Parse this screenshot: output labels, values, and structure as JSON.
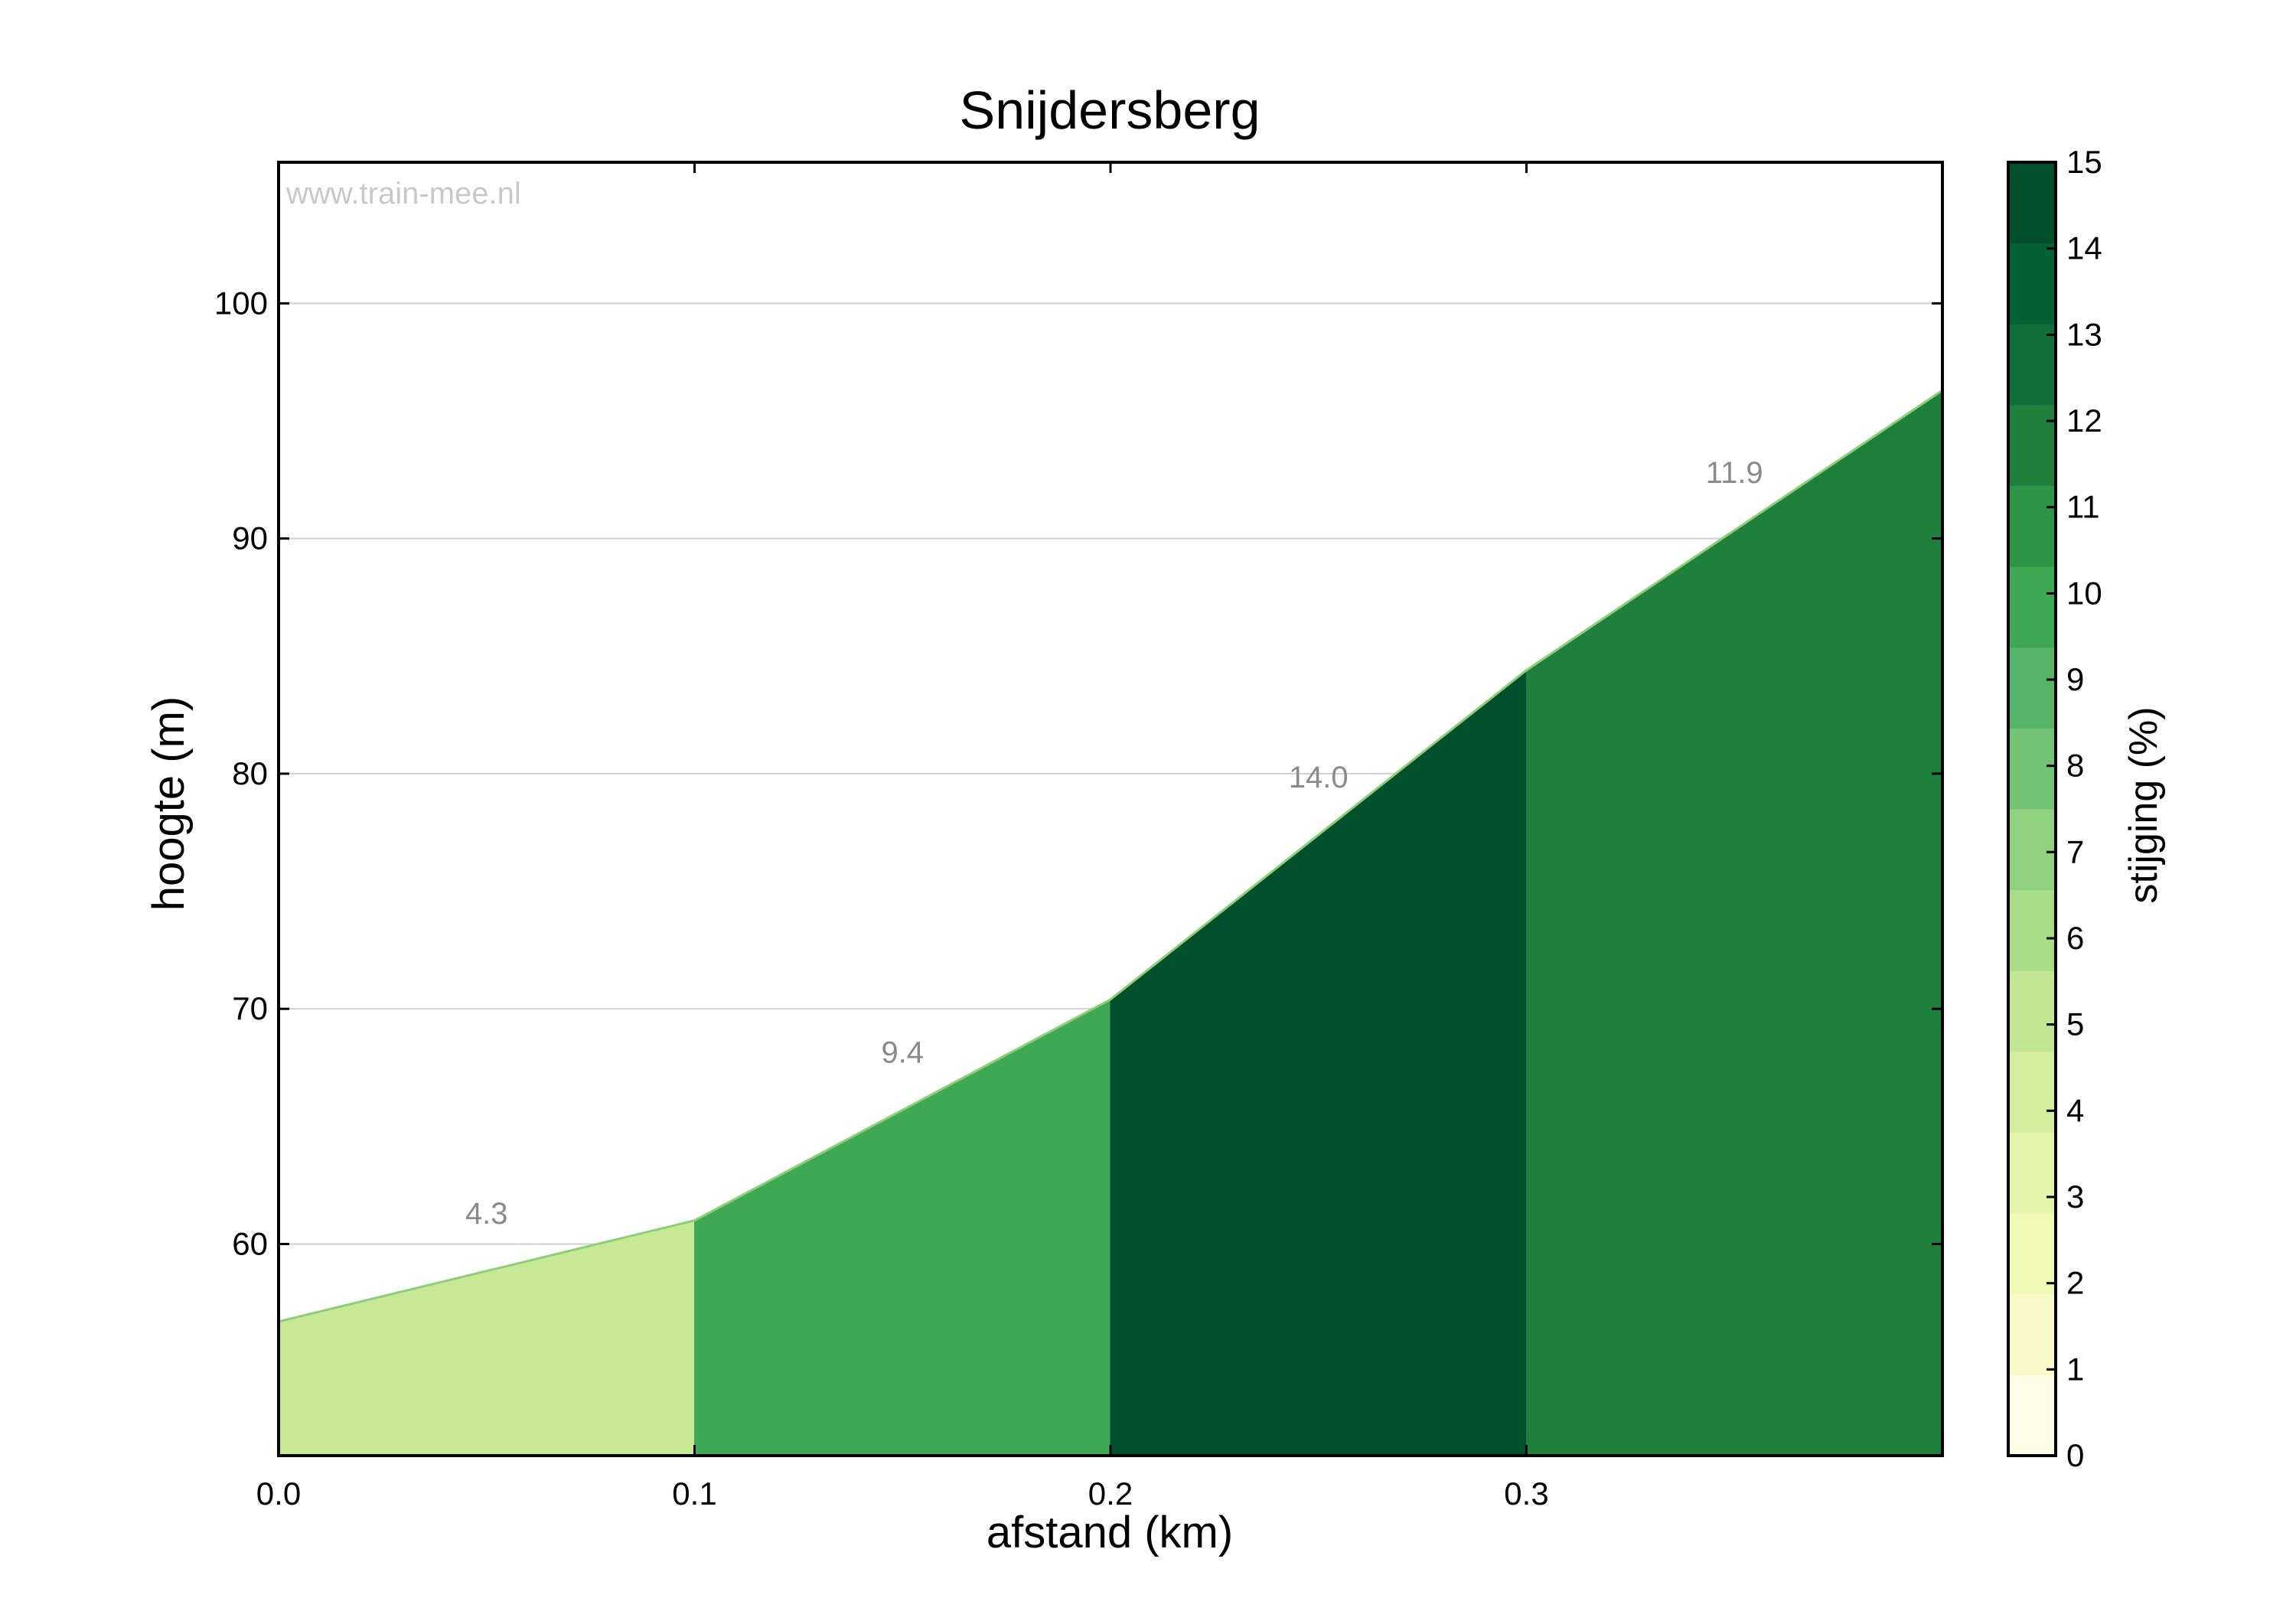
{
  "chart_data": {
    "type": "area",
    "title": "Snijdersberg",
    "xlabel": "afstand (km)",
    "ylabel": "hoogte (m)",
    "watermark": "www.train-mee.nl",
    "xlim": [
      0.0,
      0.4
    ],
    "ylim": [
      51,
      106
    ],
    "xticks": [
      0.0,
      0.1,
      0.2,
      0.3
    ],
    "xtick_labels": [
      "0.0",
      "0.1",
      "0.2",
      "0.3"
    ],
    "yticks": [
      60,
      70,
      80,
      90,
      100
    ],
    "ytick_labels": [
      "60",
      "70",
      "80",
      "90",
      "100"
    ],
    "grid": "horizontal",
    "profile": {
      "x": [
        0.0,
        0.1,
        0.2,
        0.3,
        0.4
      ],
      "y": [
        56.7,
        61.0,
        70.4,
        84.4,
        96.3
      ]
    },
    "segments": [
      {
        "x0": 0.0,
        "x1": 0.1,
        "y0": 56.7,
        "y1": 61.0,
        "gradient": 4.3,
        "label": "4.3",
        "color": "#c7e995"
      },
      {
        "x0": 0.1,
        "x1": 0.2,
        "y0": 61.0,
        "y1": 70.4,
        "gradient": 9.4,
        "label": "9.4",
        "color": "#3ea853"
      },
      {
        "x0": 0.2,
        "x1": 0.3,
        "y0": 70.4,
        "y1": 84.4,
        "gradient": 14.0,
        "label": "14.0",
        "color": "#024f2e"
      },
      {
        "x0": 0.3,
        "x1": 0.4,
        "y0": 84.4,
        "y1": 96.3,
        "gradient": 11.9,
        "label": "11.9",
        "color": "#1f803e"
      }
    ],
    "colorbar": {
      "label": "stijging (%)",
      "range": [
        0,
        15
      ],
      "ticks": [
        "0",
        "1",
        "2",
        "3",
        "4",
        "5",
        "6",
        "7",
        "8",
        "9",
        "10",
        "11",
        "12",
        "13",
        "14",
        "15"
      ],
      "colors": [
        "#fdfce4",
        "#f8fbc7",
        "#f1f9b7",
        "#e5f4ab",
        "#d4ed9f",
        "#c2e693",
        "#a9dc88",
        "#8fd17e",
        "#72c474",
        "#55b567",
        "#3ea853",
        "#2e9447",
        "#1f803e",
        "#0f7139",
        "#036235",
        "#024f2e"
      ]
    }
  }
}
